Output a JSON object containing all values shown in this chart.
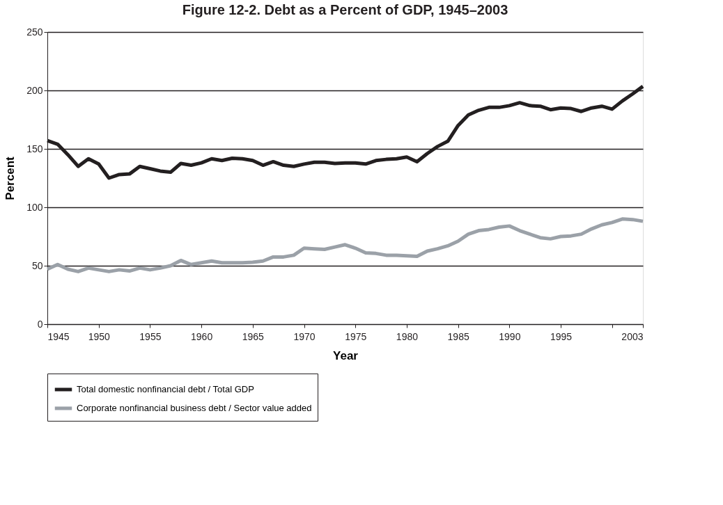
{
  "chart_data": {
    "type": "line",
    "title": "Figure 12-2. Debt as a Percent of GDP, 1945–2003",
    "xlabel": "Year",
    "ylabel": "Percent",
    "x": [
      1945,
      1946,
      1947,
      1948,
      1949,
      1950,
      1951,
      1952,
      1953,
      1954,
      1955,
      1956,
      1957,
      1958,
      1959,
      1960,
      1961,
      1962,
      1963,
      1964,
      1965,
      1966,
      1967,
      1968,
      1969,
      1970,
      1971,
      1972,
      1973,
      1974,
      1975,
      1976,
      1977,
      1978,
      1979,
      1980,
      1981,
      1982,
      1983,
      1984,
      1985,
      1986,
      1987,
      1988,
      1989,
      1990,
      1991,
      1992,
      1993,
      1994,
      1995,
      1996,
      1997,
      1998,
      1999,
      2000,
      2001,
      2002,
      2003
    ],
    "series": [
      {
        "name": "Total domestic nonfinancial debt / Total GDP",
        "color": "#231f20",
        "values": [
          157,
          154,
          145,
          135,
          141.5,
          137,
          125,
          128,
          128.5,
          135,
          133,
          131,
          130,
          137.5,
          136,
          138,
          141.5,
          140,
          142,
          141.5,
          140,
          136,
          139,
          136,
          135,
          137,
          138.5,
          138.5,
          137.5,
          138,
          138,
          137,
          140,
          141,
          141.5,
          143,
          139,
          146,
          152,
          156.5,
          170,
          179,
          183,
          185.5,
          185.5,
          187,
          189.5,
          187,
          186.5,
          183.5,
          185,
          184.5,
          182,
          185,
          186.5,
          184,
          191,
          197,
          203.5
        ]
      },
      {
        "name": "Corporate nonfinancial business debt / Sector value added",
        "color": "#9ba1a8",
        "values": [
          47,
          51,
          47,
          45,
          48,
          46.5,
          45,
          46.5,
          45.5,
          48,
          46.5,
          48,
          50,
          54.5,
          51,
          52.5,
          54,
          52.5,
          52.5,
          52.5,
          53,
          54,
          57.5,
          57.5,
          59,
          65,
          64.5,
          64,
          66,
          68,
          65,
          61,
          60.5,
          59,
          59,
          58.5,
          58,
          62.5,
          64.5,
          67,
          71,
          77,
          80,
          81,
          83,
          84,
          80,
          77,
          74,
          73,
          75,
          75.5,
          77,
          81.5,
          85,
          87,
          90,
          89.5,
          88
        ]
      }
    ],
    "xlim": [
      1945,
      2003
    ],
    "xticks": [
      1945,
      1950,
      1955,
      1960,
      1965,
      1970,
      1975,
      1980,
      1985,
      1990,
      1995,
      {
        "value": 2000,
        "label": null
      },
      2003
    ],
    "ylim": [
      0,
      250
    ],
    "yticks": [
      0,
      50,
      100,
      150,
      200,
      250
    ],
    "grid": "y",
    "legend": "bottom",
    "line_style": "solid",
    "marker": "none"
  }
}
